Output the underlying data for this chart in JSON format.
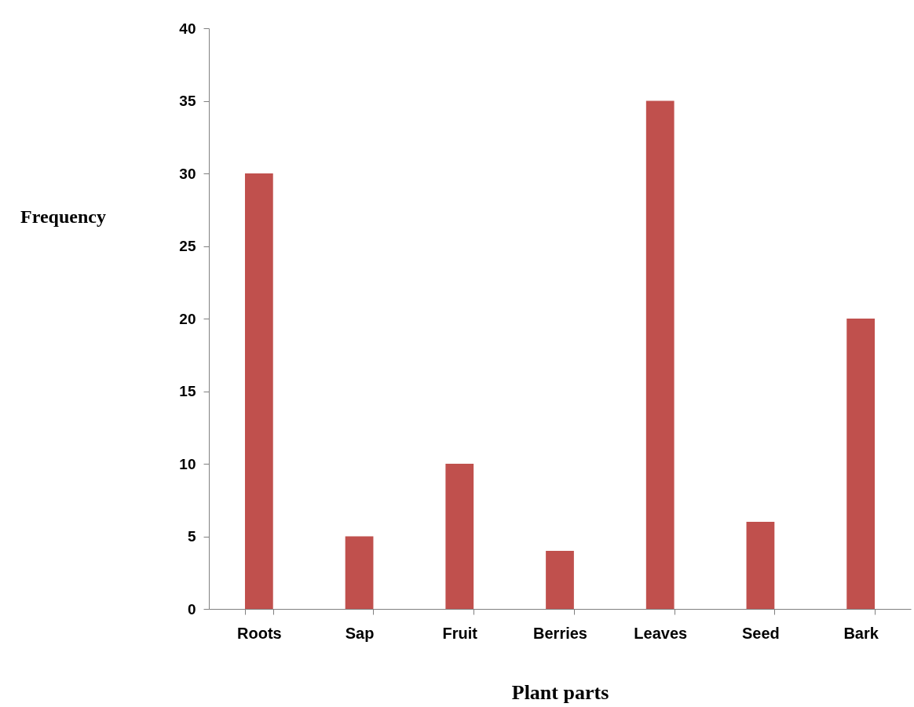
{
  "chart_data": {
    "type": "bar",
    "xlabel": "Plant parts",
    "ylabel": "Frequency",
    "categories": [
      "Roots",
      "Sap",
      "Fruit",
      "Berries",
      "Leaves",
      "Seed",
      "Bark"
    ],
    "values": [
      30,
      5,
      10,
      4,
      35,
      6,
      20
    ],
    "color": "#c0504d",
    "ylim": [
      0,
      40
    ],
    "yticks": [
      0,
      5,
      10,
      15,
      20,
      25,
      30,
      35,
      40
    ]
  }
}
